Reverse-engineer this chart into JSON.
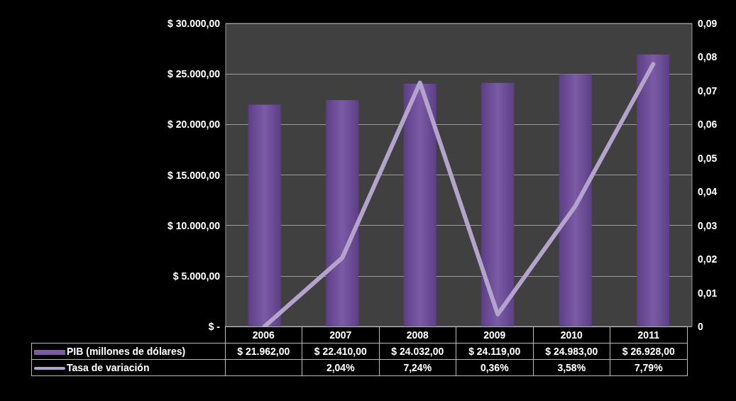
{
  "chart_data": {
    "type": "bar",
    "categories": [
      "2006",
      "2007",
      "2008",
      "2009",
      "2010",
      "2011"
    ],
    "series": [
      {
        "name": "PIB (millones de dólares)",
        "color": "#7b5aa6",
        "values": [
          21962,
          22410,
          24032,
          24119,
          24983,
          26928
        ],
        "value_labels": [
          "$ 21.962,00",
          "$ 22.410,00",
          "$ 24.032,00",
          "$ 24.119,00",
          "$ 24.983,00",
          "$ 26.928,00"
        ]
      },
      {
        "name": "Tasa de variación",
        "type": "line",
        "axis": "y2",
        "color": "#b4a4cc",
        "values": [
          0,
          0.0204,
          0.0724,
          0.0036,
          0.0358,
          0.0779
        ],
        "value_labels": [
          null,
          "2,04%",
          "7,24%",
          "0,36%",
          "3,58%",
          "7,79%"
        ]
      }
    ],
    "ylim": [
      0,
      30000
    ],
    "yticks": [
      {
        "value": 0,
        "label": "$ -"
      },
      {
        "value": 5000,
        "label": "$ 5.000,00"
      },
      {
        "value": 10000,
        "label": "$ 10.000,00"
      },
      {
        "value": 15000,
        "label": "$ 15.000,00"
      },
      {
        "value": 20000,
        "label": "$ 20.000,00"
      },
      {
        "value": 25000,
        "label": "$ 25.000,00"
      },
      {
        "value": 30000,
        "label": "$ 30.000,00"
      }
    ],
    "y2lim": [
      0,
      0.09
    ],
    "y2ticks": [
      0,
      {
        "value": 0.01,
        "label": "0,01"
      },
      {
        "value": 0.02,
        "label": "0,02"
      },
      {
        "value": 0.03,
        "label": "0,03"
      },
      {
        "value": 0.04,
        "label": "0,04"
      },
      {
        "value": 0.05,
        "label": "0,05"
      },
      {
        "value": 0.06,
        "label": "0,06"
      },
      {
        "value": 0.07,
        "label": "0,07"
      },
      {
        "value": 0.08,
        "label": "0,08"
      },
      {
        "value": 0.09,
        "label": "0,09"
      }
    ],
    "grid": "y",
    "legend": "bottom",
    "marker": "none"
  }
}
